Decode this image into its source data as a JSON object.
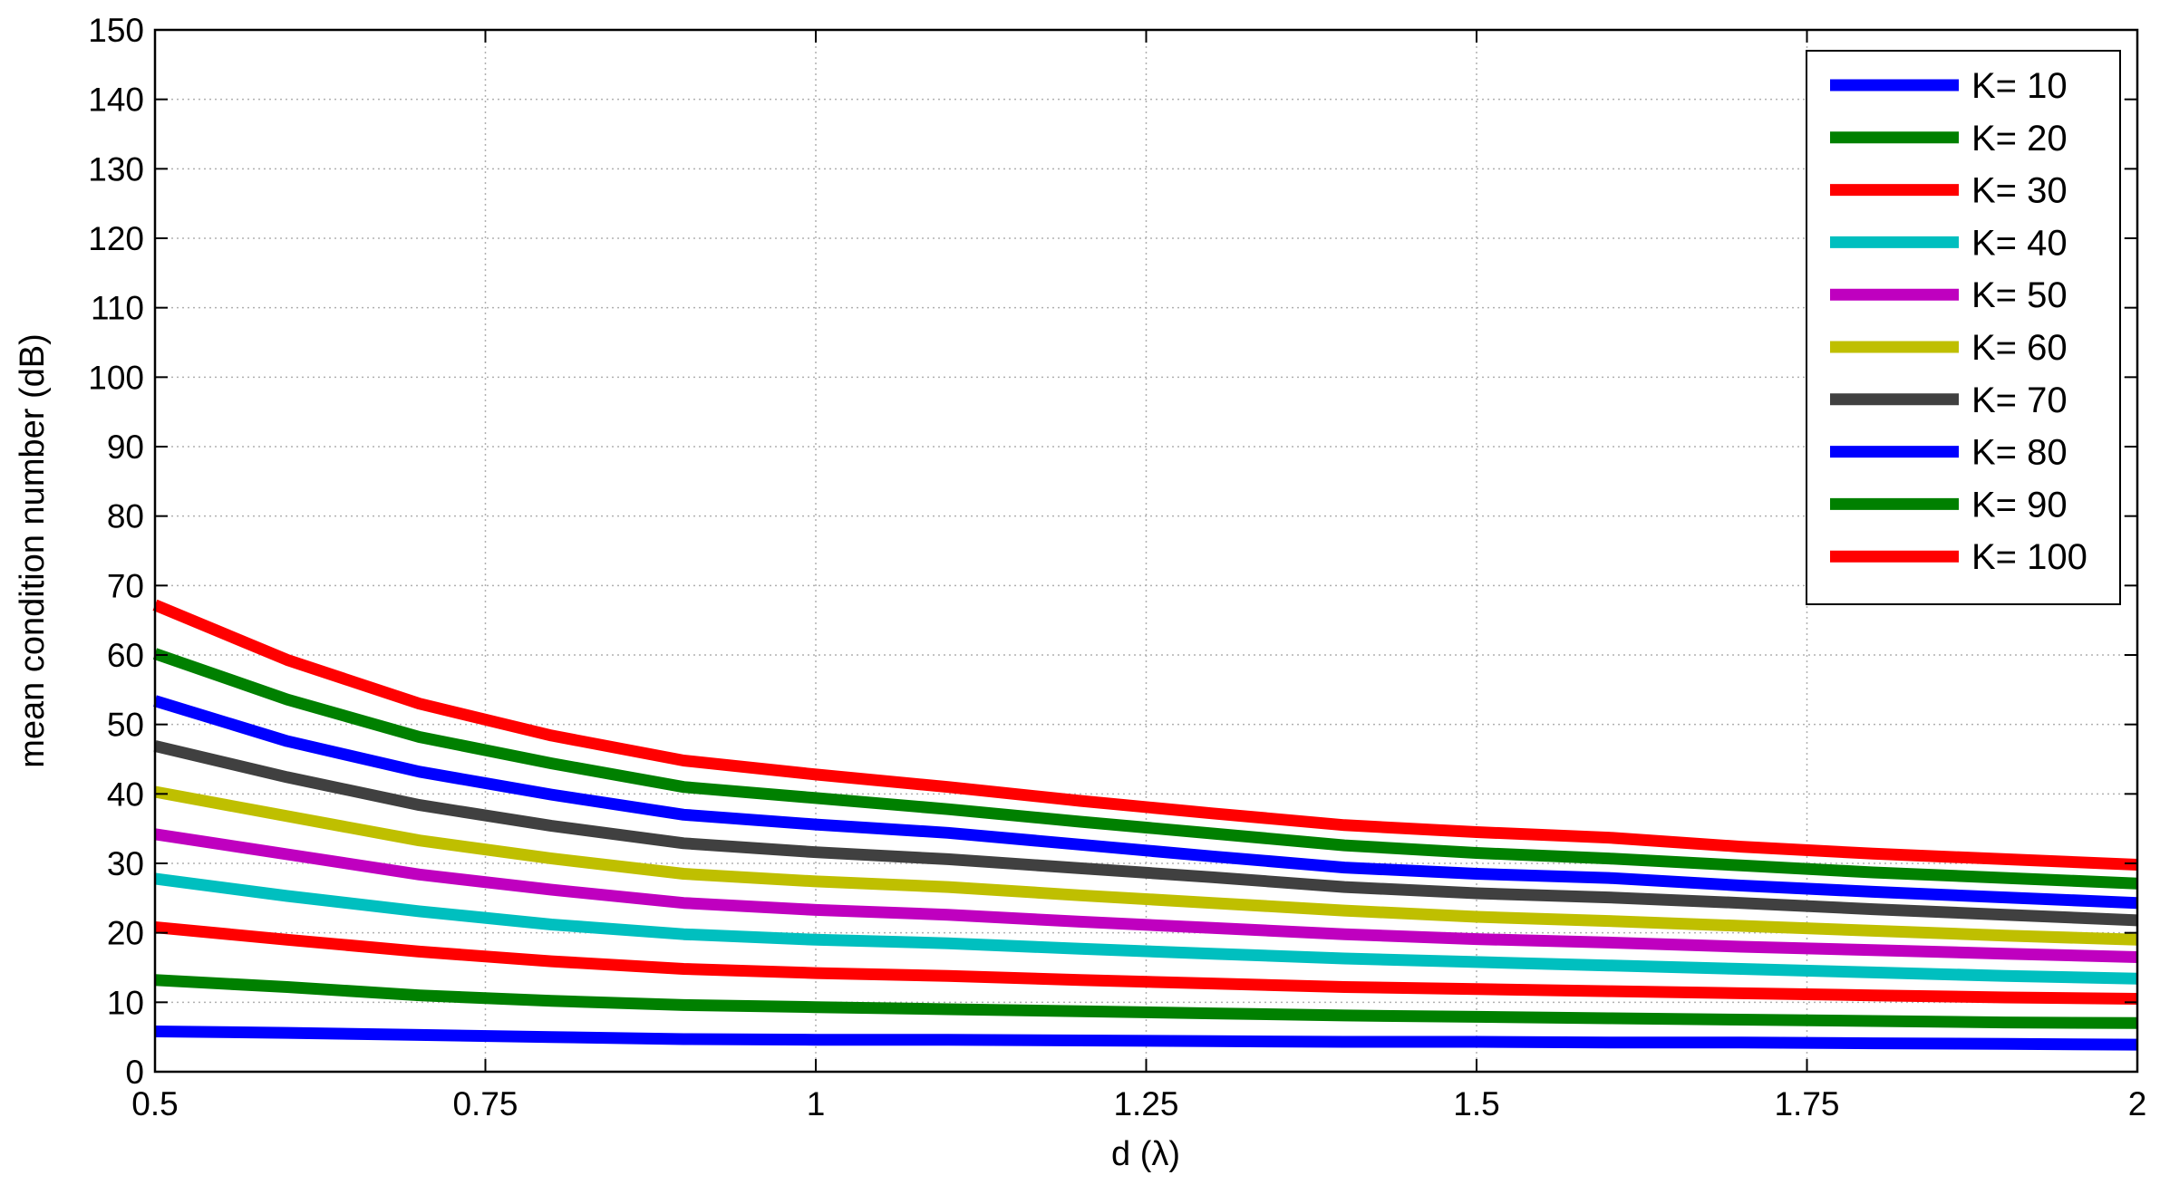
{
  "chart_data": {
    "type": "line",
    "title": "",
    "xlabel": "d (λ)",
    "ylabel": "mean condition number (dB)",
    "xlim": [
      0.5,
      2
    ],
    "ylim": [
      0,
      150
    ],
    "xticks": [
      0.5,
      0.75,
      1,
      1.25,
      1.5,
      1.75,
      2
    ],
    "xtick_labels": [
      "0.5",
      "0.75",
      "1",
      "1.25",
      "1.5",
      "1.75",
      "2"
    ],
    "yticks": [
      0,
      10,
      20,
      30,
      40,
      50,
      60,
      70,
      80,
      90,
      100,
      110,
      120,
      130,
      140,
      150
    ],
    "ytick_labels": [
      "0",
      "10",
      "20",
      "30",
      "40",
      "50",
      "60",
      "70",
      "80",
      "90",
      "100",
      "110",
      "120",
      "130",
      "140",
      "150"
    ],
    "grid": true,
    "legend_position": "top-right",
    "x": [
      0.5,
      0.6,
      0.7,
      0.8,
      0.9,
      1.0,
      1.1,
      1.2,
      1.3,
      1.4,
      1.5,
      1.6,
      1.7,
      1.8,
      1.9,
      2.0
    ],
    "series": [
      {
        "name": "K=  10",
        "color": "#0000ff",
        "values": [
          5.8,
          5.6,
          5.3,
          5.0,
          4.7,
          4.6,
          4.6,
          4.5,
          4.4,
          4.3,
          4.3,
          4.2,
          4.2,
          4.1,
          4.0,
          3.9
        ]
      },
      {
        "name": "K=  20",
        "color": "#008000",
        "values": [
          13.2,
          12.2,
          11.0,
          10.2,
          9.6,
          9.3,
          9.0,
          8.7,
          8.4,
          8.1,
          7.9,
          7.7,
          7.5,
          7.3,
          7.1,
          7.0
        ]
      },
      {
        "name": "K=  30",
        "color": "#ff0000",
        "values": [
          20.8,
          19.0,
          17.3,
          15.9,
          14.8,
          14.2,
          13.8,
          13.2,
          12.7,
          12.2,
          11.9,
          11.6,
          11.3,
          11.0,
          10.7,
          10.5
        ]
      },
      {
        "name": "K=  40",
        "color": "#00bfbf",
        "values": [
          27.8,
          25.3,
          23.1,
          21.2,
          19.8,
          19.0,
          18.5,
          17.7,
          17.0,
          16.3,
          15.8,
          15.3,
          14.8,
          14.3,
          13.8,
          13.4
        ]
      },
      {
        "name": "K=  50",
        "color": "#bf00bf",
        "values": [
          34.2,
          31.3,
          28.4,
          26.2,
          24.3,
          23.3,
          22.6,
          21.6,
          20.7,
          19.8,
          19.1,
          18.6,
          18.0,
          17.5,
          17.0,
          16.5
        ]
      },
      {
        "name": "K=  60",
        "color": "#bfbf00",
        "values": [
          40.3,
          36.8,
          33.3,
          30.7,
          28.5,
          27.4,
          26.6,
          25.4,
          24.3,
          23.2,
          22.3,
          21.7,
          21.0,
          20.3,
          19.6,
          19.0
        ]
      },
      {
        "name": "K=  70",
        "color": "#404040",
        "values": [
          46.9,
          42.4,
          38.4,
          35.4,
          32.9,
          31.6,
          30.6,
          29.3,
          28.0,
          26.6,
          25.7,
          25.1,
          24.3,
          23.4,
          22.6,
          21.8
        ]
      },
      {
        "name": "K=  80",
        "color": "#0000ff",
        "values": [
          53.4,
          47.6,
          43.2,
          39.9,
          37.0,
          35.6,
          34.4,
          32.7,
          31.0,
          29.4,
          28.5,
          27.9,
          26.8,
          25.9,
          25.1,
          24.3
        ]
      },
      {
        "name": "K=  90",
        "color": "#008000",
        "values": [
          60.2,
          53.6,
          48.2,
          44.4,
          41.0,
          39.4,
          37.8,
          36.0,
          34.3,
          32.6,
          31.5,
          30.7,
          29.7,
          28.7,
          27.9,
          27.1
        ]
      },
      {
        "name": "K= 100",
        "color": "#ff0000",
        "values": [
          67.2,
          59.3,
          53.0,
          48.4,
          44.8,
          42.8,
          41.0,
          39.0,
          37.2,
          35.5,
          34.5,
          33.7,
          32.4,
          31.4,
          30.6,
          29.8
        ]
      }
    ]
  }
}
